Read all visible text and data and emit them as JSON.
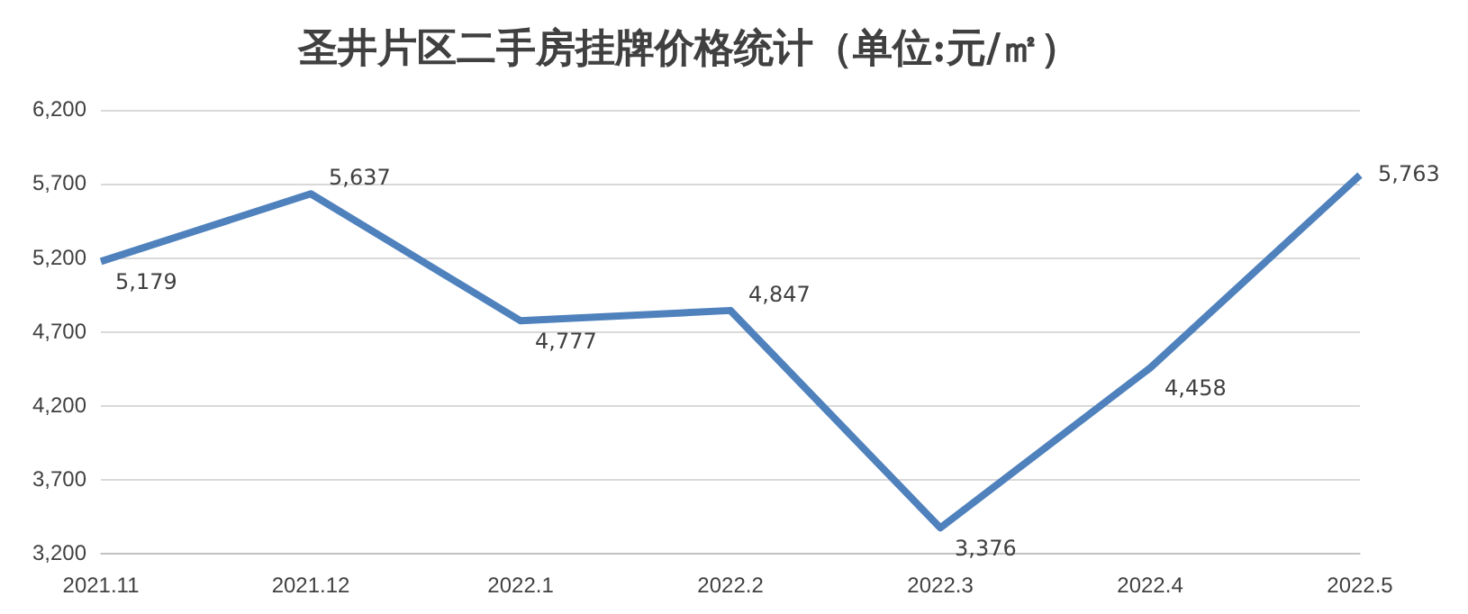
{
  "chart_data": {
    "type": "line",
    "title": "圣井片区二手房挂牌价格统计（单位:元/㎡）",
    "categories": [
      "2021.11",
      "2021.12",
      "2022.1",
      "2022.2",
      "2022.3",
      "2022.4",
      "2022.5"
    ],
    "series": [
      {
        "color": "#4f81bd",
        "values": [
          5179,
          5637,
          4777,
          4847,
          3376,
          4458,
          5763
        ],
        "value_labels": [
          "5,179",
          "5,637",
          "4,777",
          "4,847",
          "3,376",
          "4,458",
          "5,763"
        ]
      }
    ],
    "ylim": [
      3200,
      6200
    ],
    "yticks": [
      {
        "value": 3200,
        "label": "3,200"
      },
      {
        "value": 3700,
        "label": "3,700"
      },
      {
        "value": 4200,
        "label": "4,200"
      },
      {
        "value": 4700,
        "label": "4,700"
      },
      {
        "value": 5200,
        "label": "5,200"
      },
      {
        "value": 5700,
        "label": "5,700"
      },
      {
        "value": 6200,
        "label": "6,200"
      }
    ],
    "grid": "y",
    "legend": false,
    "marker": "none",
    "line_style": "solid"
  }
}
